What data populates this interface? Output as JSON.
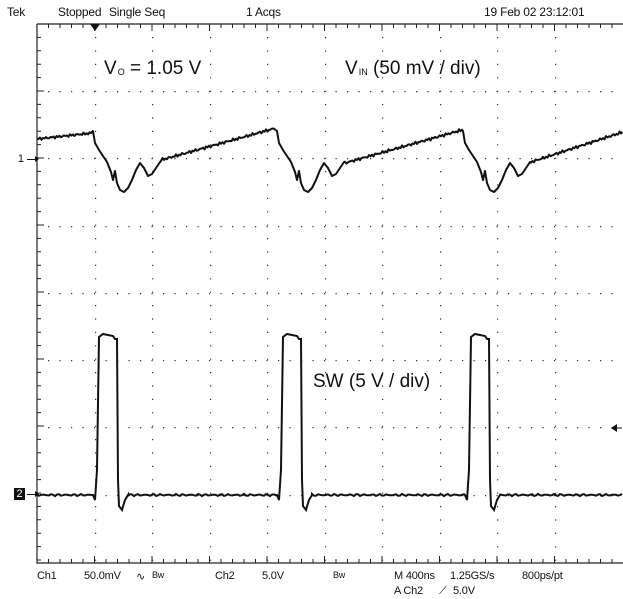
{
  "status_bar": {
    "brand": "Tek",
    "acq_state": "Stopped",
    "mode": "Single Seq",
    "acqs": "1 Acqs",
    "timestamp": "19 Feb 02 23:12:01"
  },
  "annotations": {
    "vo_symbol": "V",
    "vo_sub": "O",
    "vo_value": "= 1.05 V",
    "vin_symbol": "V",
    "vin_sub": "IN",
    "vin_scale": "(50 mV / div)",
    "sw_label": "SW (5 V / div)"
  },
  "channel_markers": {
    "ch1": "1",
    "ch2": "2"
  },
  "footer": {
    "ch1_label": "Ch1",
    "ch1_scale": "50.0mV",
    "ch1_coupling_symbol": "∿",
    "ch1_bw": "Bw",
    "ch2_label": "Ch2",
    "ch2_scale": "5.0V",
    "ch2_bw": "Bw",
    "timebase": "M 400ns",
    "sample_rate": "1.25GS/s",
    "resolution": "800ps/pt",
    "trigger_source": "A Ch2",
    "trigger_slope": "⟋",
    "trigger_level": "5.0V"
  },
  "colors": {
    "trace": "#111111",
    "grid": "#222222",
    "background": "#ffffff"
  },
  "icons": {
    "trigger_position": "trigger-position-icon",
    "trigger_level": "trigger-level-icon"
  }
}
